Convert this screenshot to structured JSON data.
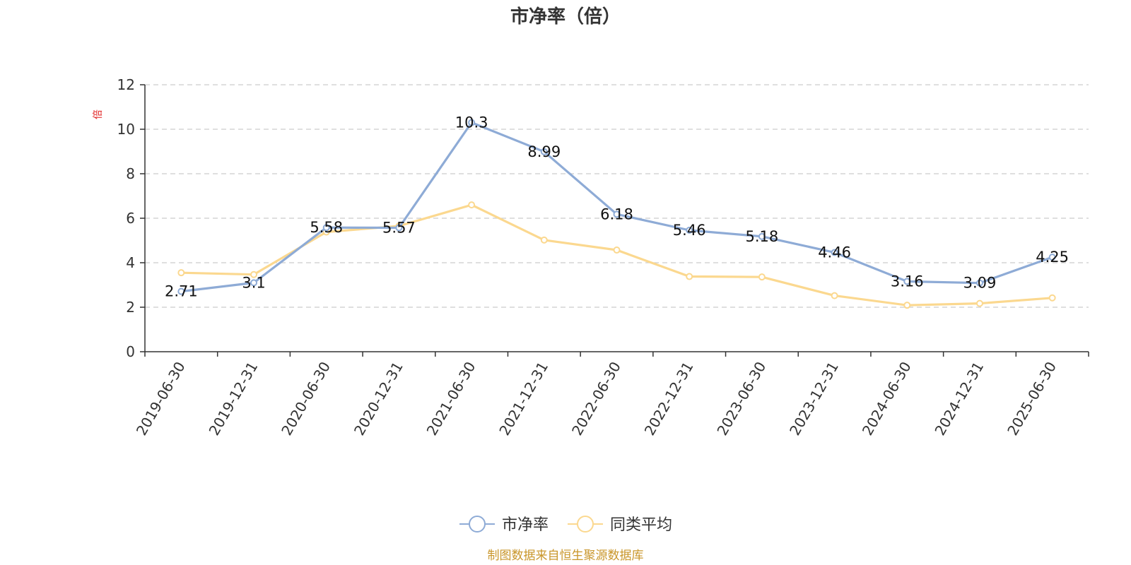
{
  "chart_data": {
    "type": "line",
    "title": "市净率（倍）",
    "ylabel": "倍",
    "ylim": [
      0,
      12
    ],
    "yticks": [
      0,
      2,
      4,
      6,
      8,
      10,
      12
    ],
    "grid": true,
    "legend_position": "bottom",
    "categories": [
      "2019-06-30",
      "2019-12-31",
      "2020-06-30",
      "2020-12-31",
      "2021-06-30",
      "2021-12-31",
      "2022-06-30",
      "2022-12-31",
      "2023-06-30",
      "2023-12-31",
      "2024-06-30",
      "2024-12-31",
      "2025-06-30"
    ],
    "series": [
      {
        "name": "市净率",
        "color": "#8eabd6",
        "values": [
          2.71,
          3.1,
          5.58,
          5.57,
          10.3,
          8.99,
          6.18,
          5.46,
          5.18,
          4.46,
          3.16,
          3.09,
          4.25
        ],
        "labels": [
          "2.71",
          "3.1",
          "5.58",
          "5.57",
          "10.3",
          "8.99",
          "6.18",
          "5.46",
          "5.18",
          "4.46",
          "3.16",
          "3.09",
          "4.25"
        ]
      },
      {
        "name": "同类平均",
        "color": "#fbd88f",
        "values": [
          3.55,
          3.47,
          5.38,
          5.65,
          6.6,
          5.02,
          4.57,
          3.38,
          3.36,
          2.52,
          2.09,
          2.17,
          2.42
        ]
      }
    ]
  },
  "footer": {
    "source": "制图数据来自恒生聚源数据库"
  }
}
